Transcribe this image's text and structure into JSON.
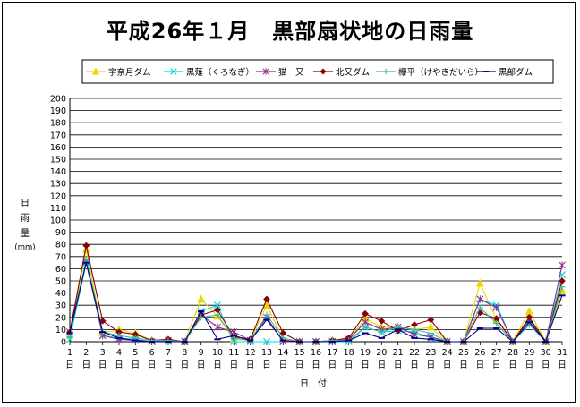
{
  "chart_data": {
    "type": "line",
    "title": "平成26年１月　黒部扇状地の日雨量",
    "xlabel": "日　付",
    "ylabel_lines": [
      "日",
      "雨",
      "量",
      "(mm)"
    ],
    "ylim": [
      0,
      200
    ],
    "y_ticks": [
      0,
      10,
      20,
      30,
      40,
      50,
      60,
      70,
      80,
      90,
      100,
      110,
      120,
      130,
      140,
      150,
      160,
      170,
      180,
      190,
      200
    ],
    "x_tick_numbers": [
      "1",
      "2",
      "3",
      "4",
      "5",
      "6",
      "7",
      "8",
      "9",
      "10",
      "11",
      "12",
      "13",
      "14",
      "15",
      "16",
      "17",
      "18",
      "19",
      "20",
      "21",
      "22",
      "23",
      "24",
      "25",
      "26",
      "27",
      "28",
      "29",
      "30",
      "31"
    ],
    "x_tick_unit": "日",
    "grid": true,
    "legend_position": "top",
    "series": [
      {
        "name": "宇奈月ダム",
        "color": "#e6d800",
        "marker": "triangle",
        "values": [
          5,
          76,
          7,
          10,
          7,
          1,
          1,
          0,
          35,
          21,
          2,
          1,
          30,
          2,
          0,
          0,
          1,
          2,
          19,
          12,
          12,
          10,
          12,
          0,
          0,
          48,
          18,
          0,
          25,
          0,
          42
        ]
      },
      {
        "name": "黒薙（くろなぎ）",
        "color": "#00d8e8",
        "marker": "x",
        "values": [
          2,
          65,
          5,
          3,
          2,
          0,
          0,
          0,
          25,
          30,
          0,
          0,
          0,
          0,
          0,
          0,
          0,
          0,
          12,
          8,
          9,
          8,
          3,
          0,
          0,
          35,
          30,
          0,
          15,
          0,
          55
        ]
      },
      {
        "name": "猫　又",
        "color": "#8c2a8c",
        "marker": "star",
        "values": [
          8,
          66,
          5,
          2,
          1,
          0,
          1,
          0,
          22,
          12,
          8,
          1,
          20,
          0,
          0,
          0,
          0,
          2,
          16,
          10,
          12,
          6,
          4,
          0,
          0,
          35,
          28,
          0,
          18,
          0,
          63
        ]
      },
      {
        "name": "北又ダム",
        "color": "#8b0000",
        "marker": "diamond",
        "values": [
          8,
          79,
          17,
          8,
          6,
          1,
          2,
          0,
          22,
          26,
          4,
          2,
          35,
          7,
          0,
          0,
          1,
          3,
          23,
          17,
          9,
          14,
          18,
          0,
          0,
          24,
          19,
          0,
          20,
          0,
          50
        ]
      },
      {
        "name": "欅平（けやきだいら）",
        "color": "#3cb8a8",
        "marker": "plus",
        "values": [
          4,
          68,
          8,
          5,
          3,
          1,
          1,
          0,
          20,
          22,
          3,
          1,
          22,
          3,
          0,
          0,
          1,
          1,
          12,
          8,
          12,
          10,
          7,
          0,
          0,
          28,
          15,
          0,
          14,
          0,
          45
        ]
      },
      {
        "name": "黒部ダム",
        "color": "#00008b",
        "marker": "dash",
        "values": [
          7,
          65,
          8,
          3,
          1,
          0,
          0,
          0,
          25,
          2,
          5,
          1,
          18,
          1,
          0,
          0,
          0,
          1,
          7,
          3,
          10,
          3,
          2,
          0,
          0,
          11,
          11,
          0,
          16,
          0,
          38
        ]
      }
    ]
  }
}
